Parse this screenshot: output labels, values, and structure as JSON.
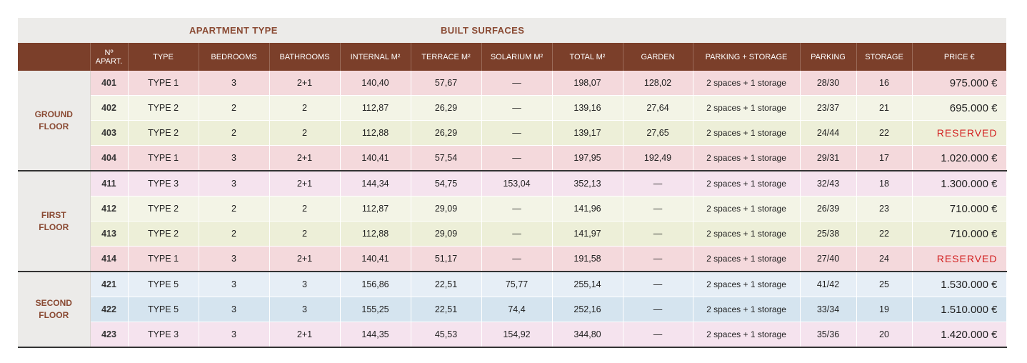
{
  "group_headers": {
    "apartment_type": "APARTMENT TYPE",
    "built_surfaces": "BUILT SURFACES"
  },
  "columns": [
    "",
    "Nº APART.",
    "TYPE",
    "BEDROOMS",
    "BATHROOMS",
    "INTERNAL M²",
    "TERRACE M²",
    "SOLARIUM M²",
    "TOTAL M²",
    "GARDEN",
    "PARKING + STORAGE",
    "PARKING",
    "STORAGE",
    "PRICE €"
  ],
  "colors": {
    "type1": "#f4d9dc",
    "type2": "#f3f4e6",
    "type2_alt": "#edefd8",
    "type3": "#f5e3ee",
    "type5": "#e6eef6",
    "type5_alt": "#d5e4ef",
    "header": "#7b3f2a",
    "accent": "#8a4a33",
    "reserved": "#d21f1f"
  },
  "floors": [
    {
      "name": "GROUND\nFLOOR",
      "rows": [
        {
          "num": "401",
          "type": "TYPE 1",
          "bed": "3",
          "bath": "2+1",
          "internal": "140,40",
          "terrace": "57,67",
          "solarium": "—",
          "total": "198,07",
          "garden": "128,02",
          "ps": "2 spaces + 1 storage",
          "parking": "28/30",
          "storage": "16",
          "price": "975.000 €",
          "color": "type1"
        },
        {
          "num": "402",
          "type": "TYPE 2",
          "bed": "2",
          "bath": "2",
          "internal": "112,87",
          "terrace": "26,29",
          "solarium": "—",
          "total": "139,16",
          "garden": "27,64",
          "ps": "2 spaces + 1 storage",
          "parking": "23/37",
          "storage": "21",
          "price": "695.000 €",
          "color": "type2"
        },
        {
          "num": "403",
          "type": "TYPE 2",
          "bed": "2",
          "bath": "2",
          "internal": "112,88",
          "terrace": "26,29",
          "solarium": "—",
          "total": "139,17",
          "garden": "27,65",
          "ps": "2 spaces + 1 storage",
          "parking": "24/44",
          "storage": "22",
          "price": "RESERVED",
          "color": "type2_alt"
        },
        {
          "num": "404",
          "type": "TYPE 1",
          "bed": "3",
          "bath": "2+1",
          "internal": "140,41",
          "terrace": "57,54",
          "solarium": "—",
          "total": "197,95",
          "garden": "192,49",
          "ps": "2 spaces + 1 storage",
          "parking": "29/31",
          "storage": "17",
          "price": "1.020.000 €",
          "color": "type1"
        }
      ]
    },
    {
      "name": "FIRST\nFLOOR",
      "rows": [
        {
          "num": "411",
          "type": "TYPE 3",
          "bed": "3",
          "bath": "2+1",
          "internal": "144,34",
          "terrace": "54,75",
          "solarium": "153,04",
          "total": "352,13",
          "garden": "—",
          "ps": "2 spaces + 1 storage",
          "parking": "32/43",
          "storage": "18",
          "price": "1.300.000 €",
          "color": "type3"
        },
        {
          "num": "412",
          "type": "TYPE 2",
          "bed": "2",
          "bath": "2",
          "internal": "112,87",
          "terrace": "29,09",
          "solarium": "—",
          "total": "141,96",
          "garden": "—",
          "ps": "2 spaces + 1 storage",
          "parking": "26/39",
          "storage": "23",
          "price": "710.000 €",
          "color": "type2"
        },
        {
          "num": "413",
          "type": "TYPE 2",
          "bed": "2",
          "bath": "2",
          "internal": "112,88",
          "terrace": "29,09",
          "solarium": "—",
          "total": "141,97",
          "garden": "—",
          "ps": "2 spaces + 1 storage",
          "parking": "25/38",
          "storage": "22",
          "price": "710.000 €",
          "color": "type2_alt"
        },
        {
          "num": "414",
          "type": "TYPE 1",
          "bed": "3",
          "bath": "2+1",
          "internal": "140,41",
          "terrace": "51,17",
          "solarium": "—",
          "total": "191,58",
          "garden": "—",
          "ps": "2 spaces + 1 storage",
          "parking": "27/40",
          "storage": "24",
          "price": "RESERVED",
          "color": "type1"
        }
      ]
    },
    {
      "name": "SECOND\nFLOOR",
      "rows": [
        {
          "num": "421",
          "type": "TYPE 5",
          "bed": "3",
          "bath": "3",
          "internal": "156,86",
          "terrace": "22,51",
          "solarium": "75,77",
          "total": "255,14",
          "garden": "—",
          "ps": "2 spaces + 1 storage",
          "parking": "41/42",
          "storage": "25",
          "price": "1.530.000 €",
          "color": "type5"
        },
        {
          "num": "422",
          "type": "TYPE 5",
          "bed": "3",
          "bath": "3",
          "internal": "155,25",
          "terrace": "22,51",
          "solarium": "74,4",
          "total": "252,16",
          "garden": "—",
          "ps": "2 spaces + 1 storage",
          "parking": "33/34",
          "storage": "19",
          "price": "1.510.000 €",
          "color": "type5_alt"
        },
        {
          "num": "423",
          "type": "TYPE 3",
          "bed": "3",
          "bath": "2+1",
          "internal": "144,35",
          "terrace": "45,53",
          "solarium": "154,92",
          "total": "344,80",
          "garden": "—",
          "ps": "2 spaces + 1 storage",
          "parking": "35/36",
          "storage": "20",
          "price": "1.420.000 €",
          "color": "type3"
        }
      ]
    }
  ]
}
